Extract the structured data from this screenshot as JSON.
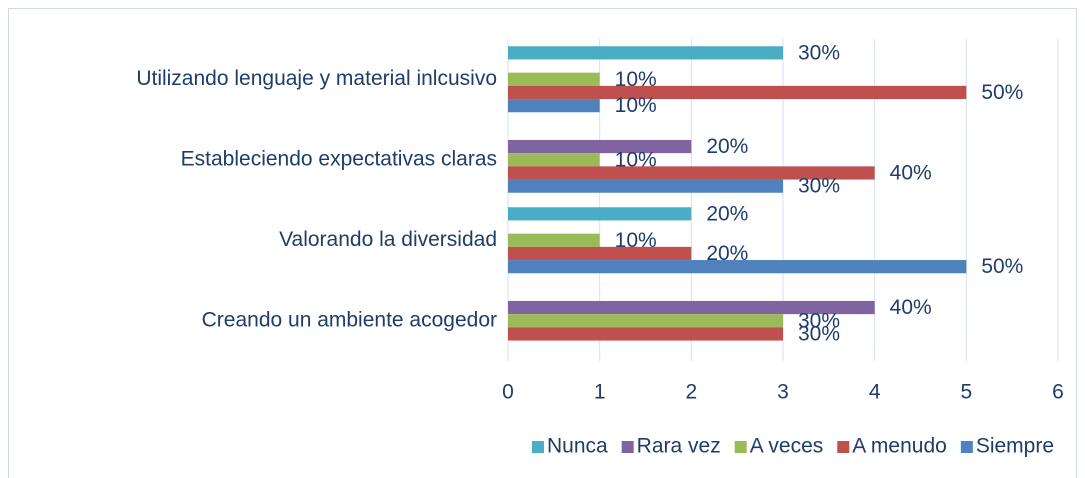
{
  "chart_data": {
    "type": "bar",
    "categories": [
      "Utilizando lenguaje y material inlcusivo",
      "Estableciendo expectativas claras",
      "Valorando la diversidad",
      "Creando un ambiente acogedor"
    ],
    "series": [
      {
        "name": "Nunca",
        "color": "#4bacc6",
        "values": [
          3,
          null,
          2,
          null
        ],
        "value_labels": [
          "30%",
          null,
          "20%",
          null
        ]
      },
      {
        "name": "Rara vez",
        "color": "#8064a2",
        "values": [
          null,
          2,
          null,
          4
        ],
        "value_labels": [
          null,
          "20%",
          null,
          "40%"
        ]
      },
      {
        "name": "A veces",
        "color": "#9bbb59",
        "values": [
          1,
          1,
          1,
          3
        ],
        "value_labels": [
          "10%",
          "10%",
          "10%",
          "30%"
        ]
      },
      {
        "name": "A menudo",
        "color": "#c0504d",
        "values": [
          5,
          4,
          2,
          3
        ],
        "value_labels": [
          "50%",
          "40%",
          "20%",
          "30%"
        ]
      },
      {
        "name": "Siempre",
        "color": "#4f81bd",
        "values": [
          1,
          3,
          5,
          null
        ],
        "value_labels": [
          "10%",
          "30%",
          "50%",
          null
        ]
      }
    ],
    "xlim": [
      0,
      6
    ],
    "xticks": [
      0,
      1,
      2,
      3,
      4,
      5,
      6
    ],
    "grid": true,
    "legend": "bottom"
  }
}
